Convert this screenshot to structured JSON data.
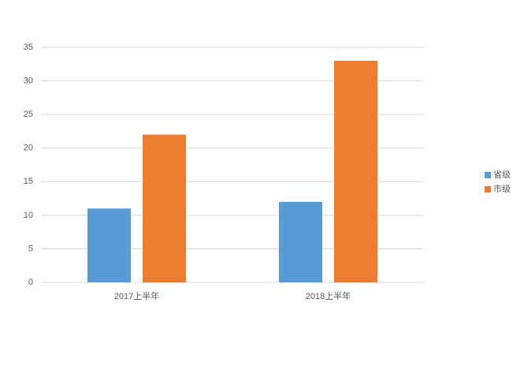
{
  "chart_data": {
    "type": "bar",
    "categories": [
      "2017上半年",
      "2018上半年"
    ],
    "series": [
      {
        "name": "省级",
        "color": "#5b9bd5",
        "values": [
          11,
          12
        ]
      },
      {
        "name": "市级",
        "color": "#ed7d31",
        "values": [
          22,
          33
        ]
      }
    ],
    "ylim": [
      0,
      35
    ],
    "yticks": [
      0,
      5,
      10,
      15,
      20,
      25,
      30,
      35
    ],
    "grid": true,
    "legend": "right"
  }
}
